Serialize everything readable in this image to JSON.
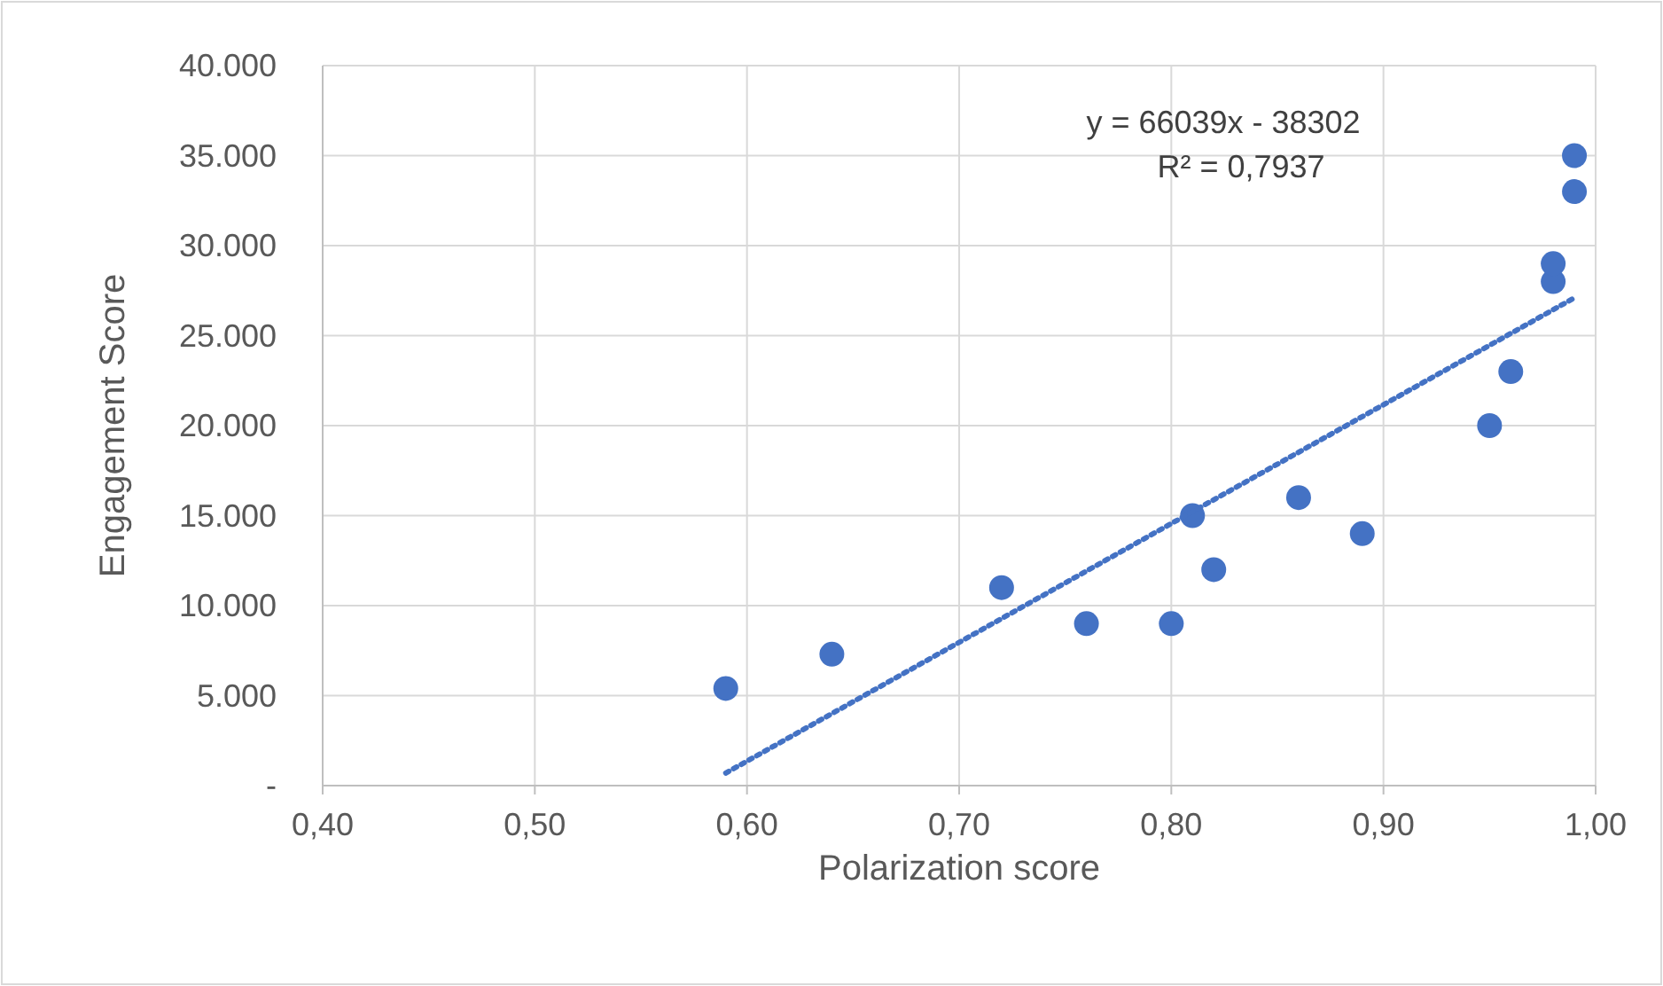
{
  "chart_data": {
    "type": "scatter",
    "xlabel": "Polarization score",
    "ylabel": "Engagement Score",
    "xlim": [
      0.4,
      1.0
    ],
    "xticks": [
      {
        "value": 0.4,
        "label": "0,40"
      },
      {
        "value": 0.5,
        "label": "0,50"
      },
      {
        "value": 0.6,
        "label": "0,60"
      },
      {
        "value": 0.7,
        "label": "0,70"
      },
      {
        "value": 0.8,
        "label": "0,80"
      },
      {
        "value": 0.9,
        "label": "0,90"
      },
      {
        "value": 1.0,
        "label": "1,00"
      }
    ],
    "ylim": [
      0,
      40000
    ],
    "yticks": [
      {
        "value": 0,
        "label": "-"
      },
      {
        "value": 5000,
        "label": "5.000"
      },
      {
        "value": 10000,
        "label": "10.000"
      },
      {
        "value": 15000,
        "label": "15.000"
      },
      {
        "value": 20000,
        "label": "20.000"
      },
      {
        "value": 25000,
        "label": "25.000"
      },
      {
        "value": 30000,
        "label": "30.000"
      },
      {
        "value": 35000,
        "label": "35.000"
      },
      {
        "value": 40000,
        "label": "40.000"
      }
    ],
    "grid": true,
    "marker": "circle",
    "series": [
      {
        "color": "#4472c4",
        "x": [
          0.59,
          0.64,
          0.72,
          0.76,
          0.8,
          0.81,
          0.82,
          0.86,
          0.89,
          0.95,
          0.96,
          0.98,
          0.98,
          0.99,
          0.99
        ],
        "values": [
          5400,
          7300,
          11000,
          9000,
          9000,
          15000,
          12000,
          16000,
          14000,
          20000,
          23000,
          28000,
          29000,
          33000,
          35000
        ]
      },
      {
        "type": "line",
        "color": "#4472c4",
        "line_style": "dotted",
        "marker": "none",
        "x": [
          0.59,
          0.99
        ],
        "values": [
          700,
          27100
        ]
      }
    ],
    "annotations": [
      "y = 66039x - 38302",
      "R² = 0,7937"
    ]
  }
}
